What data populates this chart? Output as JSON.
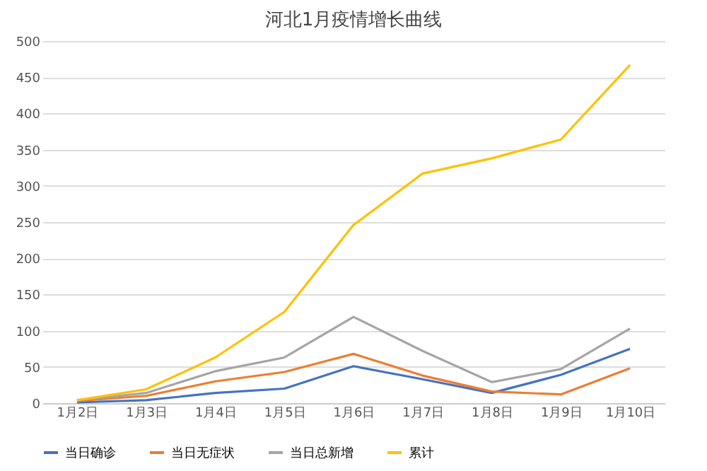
{
  "chart_data": {
    "type": "line",
    "title": "河北1月疫情增长曲线",
    "categories": [
      "1月2日",
      "1月3日",
      "1月4日",
      "1月5日",
      "1月6日",
      "1月7日",
      "1月8日",
      "1月9日",
      "1月10日"
    ],
    "series": [
      {
        "name": "当日确诊",
        "color": "#4472c4",
        "values": [
          1,
          4,
          14,
          20,
          51,
          33,
          14,
          39,
          75
        ]
      },
      {
        "name": "当日无症状",
        "color": "#ed7d31",
        "values": [
          3,
          10,
          30,
          43,
          68,
          38,
          16,
          12,
          48
        ]
      },
      {
        "name": "当日总新增",
        "color": "#a5a5a5",
        "values": [
          4,
          14,
          44,
          63,
          119,
          72,
          29,
          47,
          103
        ]
      },
      {
        "name": "累计",
        "color": "#ffc000",
        "values": [
          4,
          19,
          63,
          126,
          246,
          317,
          338,
          364,
          467
        ]
      }
    ],
    "ylim": [
      0,
      500
    ],
    "yticks": [
      0,
      50,
      100,
      150,
      200,
      250,
      300,
      350,
      400,
      450,
      500
    ],
    "grid": "y",
    "legend": "bottom",
    "marker": "none",
    "line_style": "solid"
  }
}
